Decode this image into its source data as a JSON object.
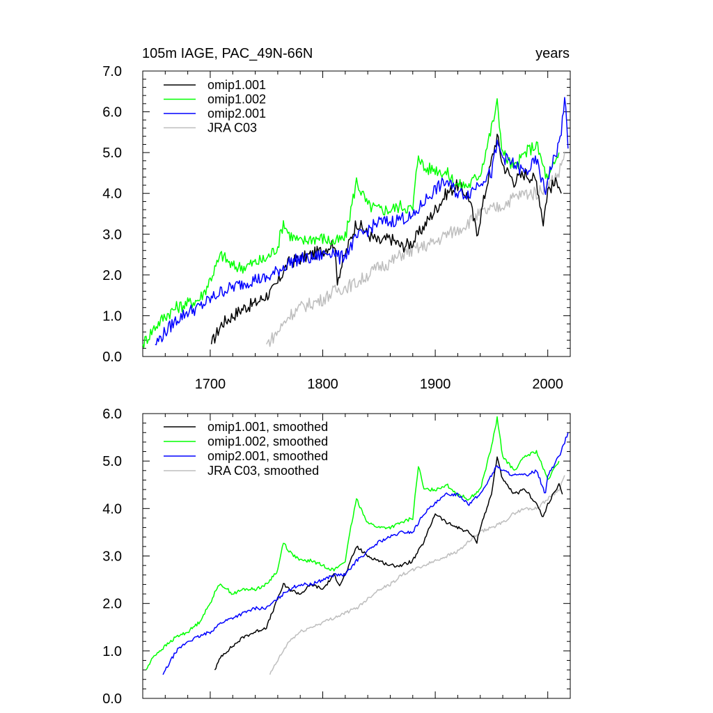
{
  "chart_data": [
    {
      "type": "line",
      "title": "105m IAGE, PAC_49N-66N",
      "title_right": "years",
      "xlim": [
        1640,
        2020
      ],
      "ylim": [
        0,
        7
      ],
      "xticks": [
        1700,
        1800,
        1900,
        2000
      ],
      "xtick_labels": [
        "1700",
        "1800",
        "1900",
        "2000"
      ],
      "yticks": [
        0,
        1,
        2,
        3,
        4,
        5,
        6,
        7
      ],
      "ytick_labels": [
        "0.0",
        "1.0",
        "2.0",
        "3.0",
        "4.0",
        "5.0",
        "6.0",
        "7.0"
      ],
      "legend_position": "top-left",
      "series": [
        {
          "name": "omip1.001",
          "color": "#000000",
          "x": [
            1701,
            1710,
            1720,
            1730,
            1740,
            1750,
            1755,
            1760,
            1765,
            1770,
            1780,
            1790,
            1800,
            1810,
            1813,
            1820,
            1825,
            1830,
            1840,
            1850,
            1860,
            1870,
            1880,
            1890,
            1900,
            1910,
            1920,
            1930,
            1937,
            1940,
            1950,
            1955,
            1960,
            1970,
            1980,
            1990,
            1996,
            2000,
            2010,
            2012
          ],
          "y": [
            0.3,
            0.8,
            1.0,
            1.2,
            1.3,
            1.5,
            1.6,
            1.8,
            2.1,
            2.3,
            2.4,
            2.5,
            2.6,
            2.8,
            1.9,
            2.5,
            2.9,
            3.3,
            3.0,
            2.8,
            2.9,
            2.7,
            2.8,
            3.2,
            3.6,
            4.0,
            4.2,
            3.9,
            3.0,
            3.4,
            4.8,
            5.4,
            4.7,
            4.3,
            4.5,
            4.3,
            3.3,
            4.1,
            4.3,
            4.0
          ]
        },
        {
          "name": "omip1.002",
          "color": "#00ff00",
          "x": [
            1640,
            1650,
            1660,
            1670,
            1680,
            1690,
            1695,
            1700,
            1705,
            1710,
            1720,
            1730,
            1740,
            1750,
            1760,
            1765,
            1770,
            1780,
            1790,
            1800,
            1810,
            1820,
            1825,
            1830,
            1840,
            1850,
            1860,
            1870,
            1880,
            1885,
            1890,
            1900,
            1910,
            1920,
            1930,
            1940,
            1950,
            1955,
            1960,
            1970,
            1980,
            1990,
            2000,
            2010
          ],
          "y": [
            0.3,
            0.7,
            1.0,
            1.2,
            1.3,
            1.4,
            1.6,
            1.9,
            2.2,
            2.5,
            2.2,
            2.2,
            2.3,
            2.4,
            2.7,
            3.3,
            3.0,
            2.8,
            2.9,
            2.9,
            2.8,
            2.9,
            3.6,
            4.3,
            3.7,
            3.6,
            3.6,
            3.7,
            3.6,
            5.0,
            4.6,
            4.6,
            4.5,
            4.2,
            4.2,
            4.5,
            5.6,
            6.2,
            5.0,
            4.6,
            5.0,
            5.2,
            4.3,
            5.0
          ]
        },
        {
          "name": "omip2.001",
          "color": "#0000ff",
          "x": [
            1651,
            1660,
            1670,
            1680,
            1690,
            1700,
            1710,
            1720,
            1730,
            1740,
            1750,
            1760,
            1770,
            1780,
            1790,
            1800,
            1810,
            1815,
            1820,
            1830,
            1840,
            1850,
            1860,
            1870,
            1880,
            1890,
            1900,
            1910,
            1920,
            1930,
            1940,
            1950,
            1955,
            1960,
            1970,
            1980,
            1990,
            1998,
            2000,
            2010,
            2012,
            2015,
            2018
          ],
          "y": [
            0.3,
            0.6,
            0.9,
            1.1,
            1.2,
            1.4,
            1.6,
            1.7,
            1.8,
            1.9,
            1.9,
            2.1,
            2.3,
            2.4,
            2.4,
            2.5,
            2.6,
            2.4,
            2.5,
            2.9,
            3.1,
            3.3,
            3.3,
            3.4,
            3.4,
            3.8,
            4.1,
            4.3,
            4.0,
            4.0,
            4.3,
            4.5,
            5.2,
            4.9,
            4.7,
            4.5,
            4.8,
            4.0,
            4.4,
            5.2,
            5.5,
            6.4,
            5.1
          ]
        },
        {
          "name": "JRA C03",
          "color": "#bebebe",
          "x": [
            1750,
            1760,
            1770,
            1780,
            1790,
            1800,
            1810,
            1820,
            1830,
            1840,
            1850,
            1860,
            1870,
            1880,
            1890,
            1900,
            1910,
            1920,
            1930,
            1940,
            1950,
            1960,
            1970,
            1980,
            1990,
            2000,
            2010,
            2015
          ],
          "y": [
            0.3,
            0.6,
            1.0,
            1.2,
            1.3,
            1.4,
            1.6,
            1.7,
            1.8,
            2.0,
            2.2,
            2.3,
            2.5,
            2.6,
            2.7,
            2.8,
            3.0,
            3.1,
            3.3,
            3.5,
            3.6,
            3.7,
            3.9,
            4.0,
            4.0,
            4.2,
            4.5,
            5.0
          ]
        }
      ]
    },
    {
      "type": "line",
      "xlim": [
        1640,
        2020
      ],
      "ylim": [
        0,
        6
      ],
      "xticks": [
        1700,
        1800,
        1900,
        2000
      ],
      "yticks": [
        0,
        1,
        2,
        3,
        4,
        5,
        6
      ],
      "ytick_labels": [
        "0.0",
        "1.0",
        "2.0",
        "3.0",
        "4.0",
        "5.0",
        "6.0"
      ],
      "legend_position": "top-left",
      "series": [
        {
          "name": "omip1.001, smoothed",
          "color": "#000000",
          "x": [
            1704,
            1710,
            1720,
            1730,
            1740,
            1750,
            1755,
            1760,
            1765,
            1770,
            1780,
            1790,
            1800,
            1810,
            1815,
            1820,
            1825,
            1830,
            1840,
            1850,
            1860,
            1870,
            1880,
            1890,
            1900,
            1910,
            1920,
            1930,
            1937,
            1940,
            1950,
            1955,
            1960,
            1970,
            1980,
            1990,
            1996,
            2000,
            2010,
            2013
          ],
          "y": [
            0.6,
            0.9,
            1.1,
            1.3,
            1.4,
            1.5,
            1.8,
            2.1,
            2.4,
            2.3,
            2.2,
            2.4,
            2.3,
            2.6,
            2.4,
            2.6,
            2.9,
            3.2,
            3.0,
            2.9,
            2.8,
            2.8,
            2.9,
            3.3,
            3.9,
            3.7,
            3.6,
            3.5,
            3.3,
            3.6,
            4.3,
            5.1,
            4.6,
            4.3,
            4.4,
            4.1,
            3.8,
            4.1,
            4.5,
            4.3
          ]
        },
        {
          "name": "omip1.002, smoothed",
          "color": "#00ff00",
          "x": [
            1643,
            1650,
            1660,
            1670,
            1680,
            1690,
            1695,
            1700,
            1705,
            1710,
            1720,
            1730,
            1740,
            1750,
            1760,
            1765,
            1770,
            1780,
            1790,
            1800,
            1810,
            1820,
            1825,
            1830,
            1840,
            1850,
            1860,
            1870,
            1880,
            1885,
            1890,
            1900,
            1910,
            1920,
            1930,
            1940,
            1950,
            1955,
            1960,
            1970,
            1980,
            1990,
            2000,
            2010
          ],
          "y": [
            0.6,
            0.9,
            1.1,
            1.3,
            1.4,
            1.6,
            1.8,
            2.0,
            2.3,
            2.4,
            2.2,
            2.3,
            2.3,
            2.4,
            2.7,
            3.3,
            3.1,
            2.9,
            2.9,
            2.8,
            2.7,
            2.9,
            3.6,
            4.2,
            3.7,
            3.6,
            3.6,
            3.7,
            3.8,
            4.9,
            4.4,
            4.4,
            4.5,
            4.3,
            4.2,
            4.4,
            5.3,
            5.9,
            5.1,
            4.8,
            5.1,
            5.2,
            4.6,
            5.0
          ]
        },
        {
          "name": "omip2.001, smoothed",
          "color": "#0000ff",
          "x": [
            1658,
            1665,
            1670,
            1680,
            1690,
            1700,
            1710,
            1720,
            1730,
            1740,
            1750,
            1760,
            1770,
            1780,
            1790,
            1800,
            1810,
            1820,
            1830,
            1840,
            1850,
            1860,
            1870,
            1880,
            1890,
            1900,
            1910,
            1920,
            1930,
            1940,
            1950,
            1955,
            1960,
            1970,
            1980,
            1990,
            1998,
            2000,
            2010,
            2015,
            2018
          ],
          "y": [
            0.5,
            0.8,
            1.0,
            1.2,
            1.3,
            1.4,
            1.6,
            1.7,
            1.8,
            1.9,
            1.9,
            2.1,
            2.3,
            2.4,
            2.4,
            2.5,
            2.6,
            2.6,
            2.9,
            3.1,
            3.3,
            3.4,
            3.5,
            3.5,
            3.9,
            4.1,
            4.3,
            4.3,
            4.1,
            4.3,
            4.7,
            4.9,
            4.8,
            4.7,
            4.7,
            4.8,
            4.3,
            4.7,
            5.1,
            5.4,
            5.6
          ]
        },
        {
          "name": "JRA C03, smoothed",
          "color": "#bebebe",
          "x": [
            1753,
            1760,
            1770,
            1780,
            1790,
            1800,
            1810,
            1820,
            1830,
            1840,
            1850,
            1860,
            1870,
            1880,
            1890,
            1900,
            1910,
            1920,
            1930,
            1940,
            1950,
            1960,
            1970,
            1980,
            1990,
            2000,
            2010,
            2015
          ],
          "y": [
            0.5,
            0.8,
            1.2,
            1.4,
            1.5,
            1.6,
            1.7,
            1.8,
            1.9,
            2.1,
            2.3,
            2.4,
            2.6,
            2.7,
            2.8,
            2.9,
            3.0,
            3.1,
            3.3,
            3.5,
            3.6,
            3.7,
            3.9,
            4.0,
            4.0,
            4.2,
            4.4,
            4.7
          ]
        }
      ]
    }
  ]
}
